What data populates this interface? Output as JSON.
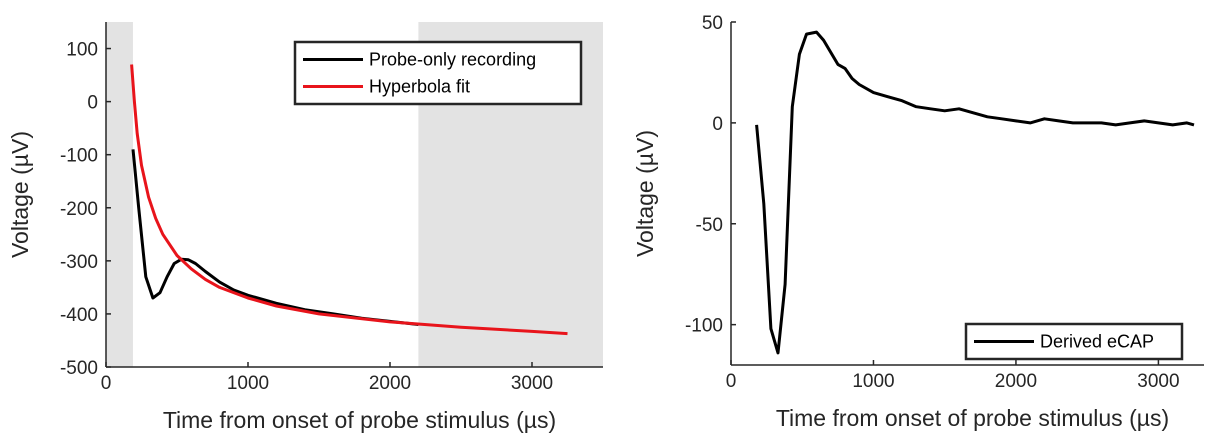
{
  "chart_data": [
    {
      "type": "line",
      "xlabel": "Time from onset of probe stimulus (µs)",
      "ylabel": "Voltage (µV)",
      "xlim": [
        0,
        3500
      ],
      "ylim": [
        -500,
        150
      ],
      "xticks": [
        0,
        1000,
        2000,
        3000
      ],
      "yticks": [
        -500,
        -400,
        -300,
        -200,
        -100,
        0,
        100
      ],
      "shaded_regions": [
        [
          0,
          190
        ],
        [
          2200,
          3500
        ]
      ],
      "legend": "top-right",
      "series": [
        {
          "name": "Probe-only recording",
          "color": "#000000",
          "x": [
            190,
            230,
            280,
            330,
            380,
            430,
            480,
            530,
            580,
            630,
            700,
            800,
            900,
            1000,
            1200,
            1400,
            1600,
            1800,
            2000,
            2200
          ],
          "values": [
            -90,
            -200,
            -330,
            -370,
            -360,
            -330,
            -305,
            -297,
            -298,
            -305,
            -320,
            -340,
            -355,
            -365,
            -380,
            -392,
            -400,
            -408,
            -414,
            -420
          ]
        },
        {
          "name": "Hyperbola fit",
          "color": "#e8141b",
          "x": [
            180,
            200,
            220,
            250,
            300,
            350,
            400,
            500,
            600,
            700,
            800,
            1000,
            1200,
            1500,
            2000,
            2500,
            3000,
            3250
          ],
          "values": [
            70,
            0,
            -60,
            -120,
            -180,
            -220,
            -250,
            -290,
            -315,
            -335,
            -350,
            -370,
            -385,
            -400,
            -415,
            -425,
            -433,
            -437
          ]
        }
      ]
    },
    {
      "type": "line",
      "xlabel": "Time from onset of probe stimulus (µs)",
      "ylabel": "Voltage (µV)",
      "xlim": [
        0,
        3320
      ],
      "ylim": [
        -120,
        50
      ],
      "xticks": [
        0,
        1000,
        2000,
        3000
      ],
      "yticks": [
        -100,
        -50,
        0,
        50
      ],
      "legend": "bottom-right",
      "series": [
        {
          "name": "Derived eCAP",
          "color": "#000000",
          "x": [
            180,
            230,
            280,
            330,
            380,
            430,
            480,
            530,
            600,
            650,
            700,
            750,
            800,
            850,
            900,
            1000,
            1100,
            1200,
            1300,
            1400,
            1500,
            1600,
            1700,
            1800,
            1900,
            2000,
            2100,
            2200,
            2300,
            2400,
            2500,
            2600,
            2700,
            2800,
            2900,
            3000,
            3100,
            3200,
            3250
          ],
          "values": [
            -1,
            -40,
            -102,
            -114,
            -80,
            8,
            34,
            44,
            45,
            41,
            35,
            29,
            27,
            22,
            19,
            15,
            13,
            11,
            8,
            7,
            6,
            7,
            5,
            3,
            2,
            1,
            0,
            2,
            1,
            0,
            0,
            0,
            -1,
            0,
            1,
            0,
            -1,
            0,
            -1
          ]
        }
      ]
    }
  ]
}
